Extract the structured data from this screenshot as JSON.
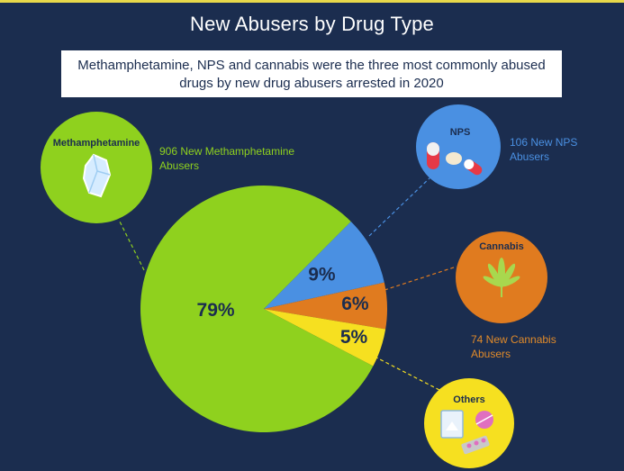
{
  "chart_data": {
    "type": "pie",
    "title": "New Abusers by Drug Type",
    "subtitle": "Methamphetamine, NPS and cannabis were the three most commonly abused drugs by new drug abusers arrested in 2020",
    "slices": [
      {
        "name": "Methamphetamine",
        "value": 79,
        "label": "79%",
        "color": "#8fd11e",
        "annotation": "906 New Methamphetamine Abusers",
        "icon": "crystal-icon"
      },
      {
        "name": "NPS",
        "value": 9,
        "label": "9%",
        "color": "#4a90e2",
        "annotation": "106 New NPS Abusers",
        "icon": "pills-icon"
      },
      {
        "name": "Cannabis",
        "value": 6,
        "label": "6%",
        "color": "#e07b1f",
        "annotation": "74 New Cannabis Abusers",
        "icon": "cannabis-leaf-icon"
      },
      {
        "name": "Others",
        "value": 5,
        "label": "5%",
        "color": "#f6e020",
        "annotation": "",
        "icon": "drug-packets-icon"
      }
    ]
  },
  "colors": {
    "background": "#1b2d4f",
    "label_dark": "#1b2d4f",
    "leader_line_meth": "#8fd11e",
    "leader_line_nps": "#4a90e2",
    "leader_line_cannabis": "#e07b1f",
    "leader_line_others": "#f6e020"
  }
}
